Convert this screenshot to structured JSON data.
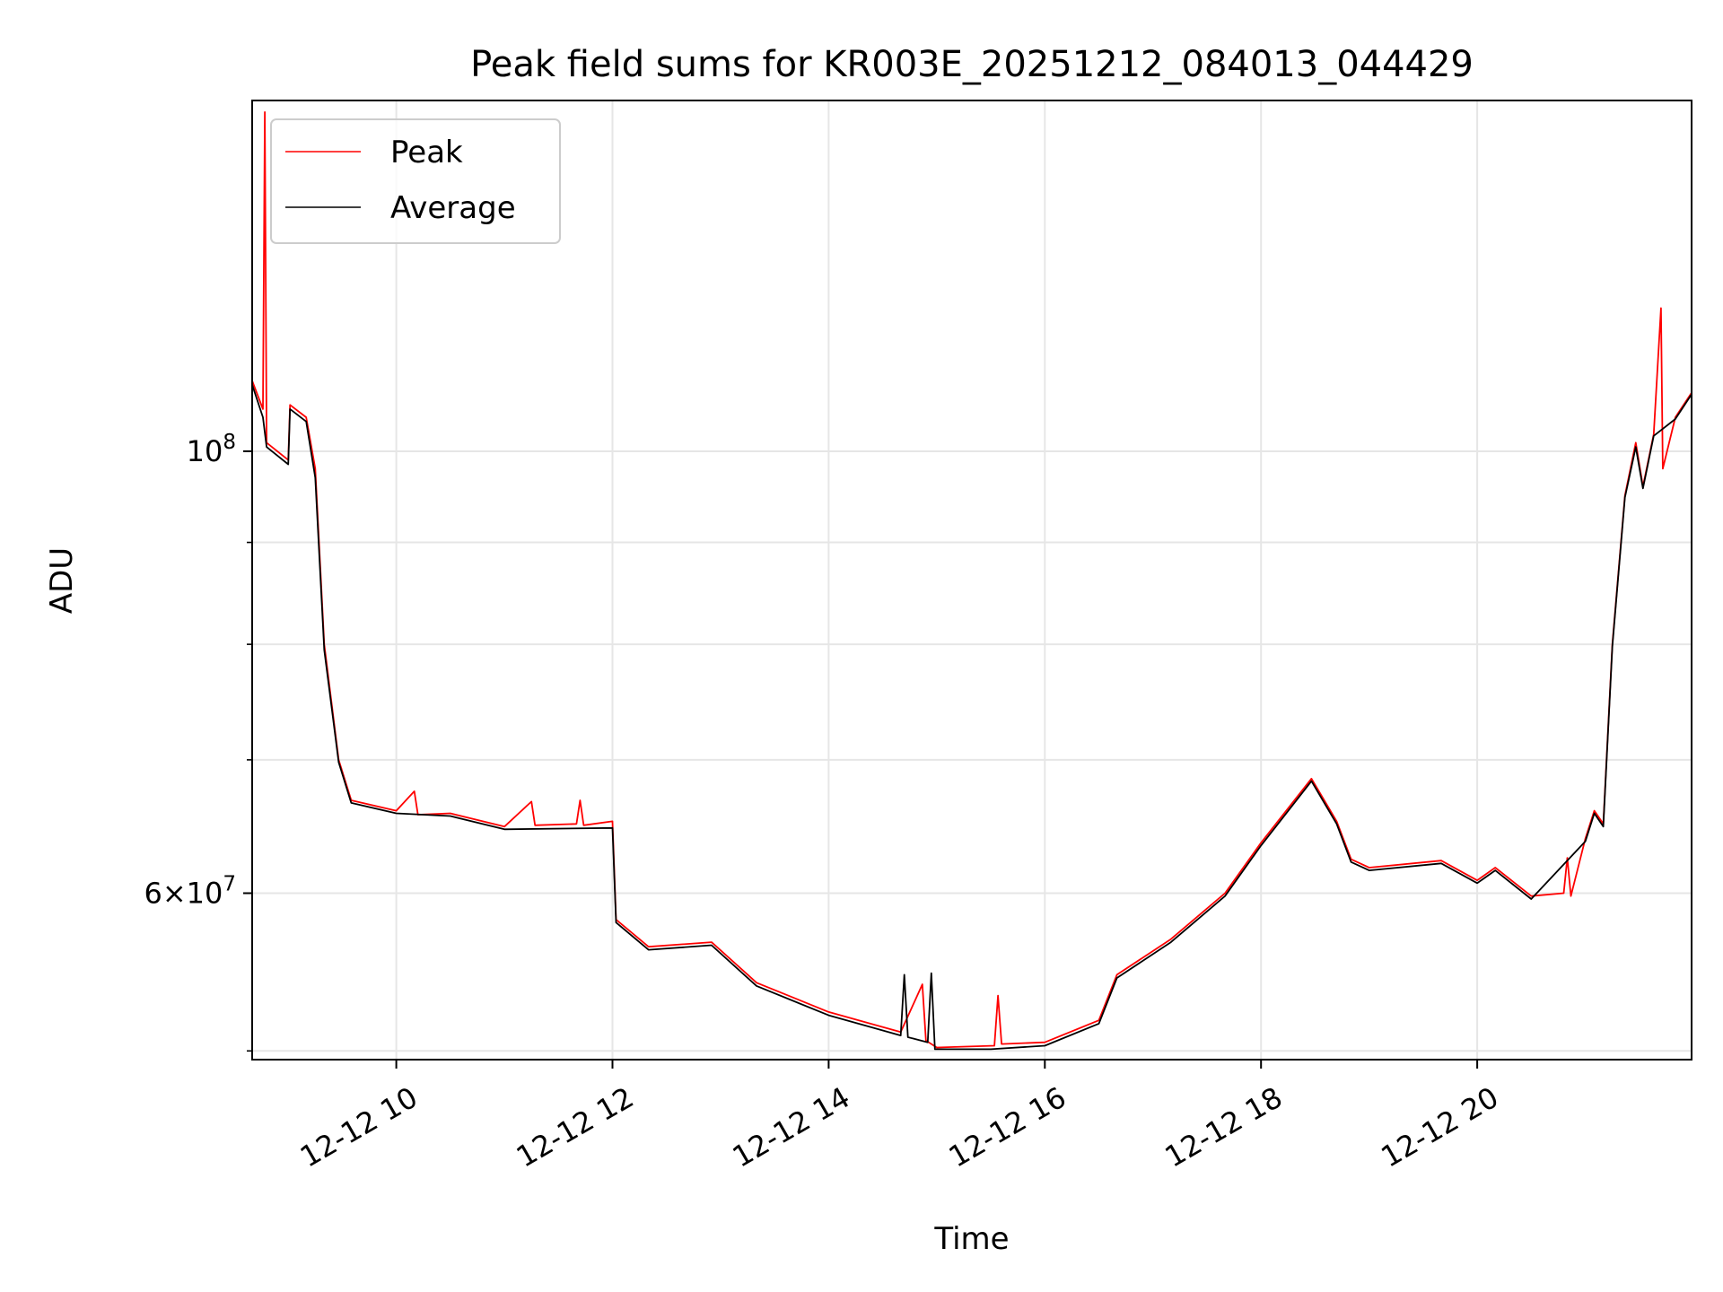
{
  "chart_data": {
    "type": "line",
    "title": "Peak field sums for KR003E_20251212_084013_044429",
    "xlabel": "Time",
    "ylabel": "ADU",
    "y_scale": "log",
    "ylim": [
      49500000,
      150000000
    ],
    "xlim": [
      "2025-12-12 08:40",
      "2025-12-12 21:59"
    ],
    "grid": true,
    "legend_position": "upper-left",
    "x_ticks": [
      {
        "value": "2025-12-12 10:00",
        "label": "12-12 10"
      },
      {
        "value": "2025-12-12 12:00",
        "label": "12-12 12"
      },
      {
        "value": "2025-12-12 14:00",
        "label": "12-12 14"
      },
      {
        "value": "2025-12-12 16:00",
        "label": "12-12 16"
      },
      {
        "value": "2025-12-12 18:00",
        "label": "12-12 18"
      },
      {
        "value": "2025-12-12 20:00",
        "label": "12-12 20"
      }
    ],
    "y_major_ticks": [
      {
        "value": 60000000,
        "mantissa": "6",
        "base": "10",
        "exp": "7"
      },
      {
        "value": 100000000,
        "mantissa": "",
        "base": "10",
        "exp": "8"
      }
    ],
    "y_minor_ticks": [
      50000000,
      70000000,
      80000000,
      90000000
    ],
    "series": [
      {
        "name": "Peak",
        "color": "#ff0000",
        "points": [
          [
            "2025-12-12 08:40",
            108500000
          ],
          [
            "2025-12-12 08:46",
            105000000
          ],
          [
            "2025-12-12 08:47",
            148000000
          ],
          [
            "2025-12-12 08:48",
            101000000
          ],
          [
            "2025-12-12 09:00",
            99000000
          ],
          [
            "2025-12-12 09:01",
            105500000
          ],
          [
            "2025-12-12 09:10",
            104000000
          ],
          [
            "2025-12-12 09:15",
            98000000
          ],
          [
            "2025-12-12 09:20",
            80000000
          ],
          [
            "2025-12-12 09:28",
            70000000
          ],
          [
            "2025-12-12 09:35",
            66800000
          ],
          [
            "2025-12-12 10:00",
            66000000
          ],
          [
            "2025-12-12 10:10",
            67500000
          ],
          [
            "2025-12-12 10:12",
            65700000
          ],
          [
            "2025-12-12 10:30",
            65800000
          ],
          [
            "2025-12-12 11:00",
            64800000
          ],
          [
            "2025-12-12 11:15",
            66700000
          ],
          [
            "2025-12-12 11:17",
            64900000
          ],
          [
            "2025-12-12 11:40",
            65000000
          ],
          [
            "2025-12-12 11:42",
            66800000
          ],
          [
            "2025-12-12 11:44",
            64900000
          ],
          [
            "2025-12-12 12:00",
            65200000
          ],
          [
            "2025-12-12 12:02",
            58200000
          ],
          [
            "2025-12-12 12:20",
            56400000
          ],
          [
            "2025-12-12 12:55",
            56700000
          ],
          [
            "2025-12-12 13:20",
            54100000
          ],
          [
            "2025-12-12 14:00",
            52300000
          ],
          [
            "2025-12-12 14:40",
            51100000
          ],
          [
            "2025-12-12 14:52",
            54000000
          ],
          [
            "2025-12-12 14:54",
            50600000
          ],
          [
            "2025-12-12 15:00",
            50200000
          ],
          [
            "2025-12-12 15:32",
            50300000
          ],
          [
            "2025-12-12 15:34",
            53300000
          ],
          [
            "2025-12-12 15:36",
            50400000
          ],
          [
            "2025-12-12 16:00",
            50500000
          ],
          [
            "2025-12-12 16:30",
            51800000
          ],
          [
            "2025-12-12 16:40",
            54600000
          ],
          [
            "2025-12-12 17:10",
            56900000
          ],
          [
            "2025-12-12 17:40",
            60000000
          ],
          [
            "2025-12-12 18:00",
            63600000
          ],
          [
            "2025-12-12 18:28",
            68500000
          ],
          [
            "2025-12-12 18:42",
            65200000
          ],
          [
            "2025-12-12 18:50",
            62400000
          ],
          [
            "2025-12-12 19:00",
            61800000
          ],
          [
            "2025-12-12 19:40",
            62300000
          ],
          [
            "2025-12-12 20:00",
            60900000
          ],
          [
            "2025-12-12 20:10",
            61800000
          ],
          [
            "2025-12-12 20:30",
            59800000
          ],
          [
            "2025-12-12 20:48",
            60000000
          ],
          [
            "2025-12-12 20:50",
            62500000
          ],
          [
            "2025-12-12 20:52",
            59800000
          ],
          [
            "2025-12-12 21:00",
            63900000
          ],
          [
            "2025-12-12 21:05",
            66000000
          ],
          [
            "2025-12-12 21:10",
            65000000
          ],
          [
            "2025-12-12 21:15",
            80000000
          ],
          [
            "2025-12-12 21:22",
            95000000
          ],
          [
            "2025-12-12 21:28",
            101000000
          ],
          [
            "2025-12-12 21:32",
            96000000
          ],
          [
            "2025-12-12 21:38",
            102000000
          ],
          [
            "2025-12-12 21:42",
            118000000
          ],
          [
            "2025-12-12 21:43",
            98000000
          ],
          [
            "2025-12-12 21:50",
            104000000
          ],
          [
            "2025-12-12 21:59",
            107000000
          ]
        ]
      },
      {
        "name": "Average",
        "color": "#000000",
        "points": [
          [
            "2025-12-12 08:40",
            108000000
          ],
          [
            "2025-12-12 08:46",
            104000000
          ],
          [
            "2025-12-12 08:48",
            100500000
          ],
          [
            "2025-12-12 09:00",
            98500000
          ],
          [
            "2025-12-12 09:01",
            105000000
          ],
          [
            "2025-12-12 09:10",
            103500000
          ],
          [
            "2025-12-12 09:15",
            97000000
          ],
          [
            "2025-12-12 09:20",
            79500000
          ],
          [
            "2025-12-12 09:28",
            69800000
          ],
          [
            "2025-12-12 09:35",
            66600000
          ],
          [
            "2025-12-12 10:00",
            65800000
          ],
          [
            "2025-12-12 10:30",
            65600000
          ],
          [
            "2025-12-12 11:00",
            64600000
          ],
          [
            "2025-12-12 12:00",
            64700000
          ],
          [
            "2025-12-12 12:02",
            58000000
          ],
          [
            "2025-12-12 12:20",
            56200000
          ],
          [
            "2025-12-12 12:55",
            56500000
          ],
          [
            "2025-12-12 13:20",
            53900000
          ],
          [
            "2025-12-12 14:00",
            52100000
          ],
          [
            "2025-12-12 14:40",
            50900000
          ],
          [
            "2025-12-12 14:42",
            54600000
          ],
          [
            "2025-12-12 14:44",
            50800000
          ],
          [
            "2025-12-12 14:55",
            50500000
          ],
          [
            "2025-12-12 14:57",
            54700000
          ],
          [
            "2025-12-12 14:59",
            50100000
          ],
          [
            "2025-12-12 15:30",
            50100000
          ],
          [
            "2025-12-12 16:00",
            50300000
          ],
          [
            "2025-12-12 16:30",
            51600000
          ],
          [
            "2025-12-12 16:40",
            54400000
          ],
          [
            "2025-12-12 17:10",
            56700000
          ],
          [
            "2025-12-12 17:40",
            59800000
          ],
          [
            "2025-12-12 18:00",
            63400000
          ],
          [
            "2025-12-12 18:28",
            68300000
          ],
          [
            "2025-12-12 18:42",
            65000000
          ],
          [
            "2025-12-12 18:50",
            62200000
          ],
          [
            "2025-12-12 19:00",
            61600000
          ],
          [
            "2025-12-12 19:40",
            62100000
          ],
          [
            "2025-12-12 20:00",
            60700000
          ],
          [
            "2025-12-12 20:10",
            61600000
          ],
          [
            "2025-12-12 20:30",
            59600000
          ],
          [
            "2025-12-12 21:00",
            63700000
          ],
          [
            "2025-12-12 21:05",
            65800000
          ],
          [
            "2025-12-12 21:10",
            64800000
          ],
          [
            "2025-12-12 21:15",
            79800000
          ],
          [
            "2025-12-12 21:22",
            94800000
          ],
          [
            "2025-12-12 21:28",
            100500000
          ],
          [
            "2025-12-12 21:32",
            95800000
          ],
          [
            "2025-12-12 21:38",
            101800000
          ],
          [
            "2025-12-12 21:50",
            103800000
          ],
          [
            "2025-12-12 21:59",
            106800000
          ]
        ]
      }
    ]
  }
}
